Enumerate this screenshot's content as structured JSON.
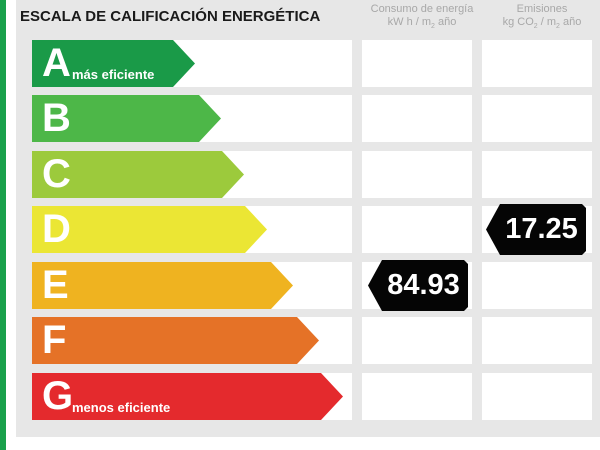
{
  "title": "ESCALA DE CALIFICACIÓN ENERGÉTICA",
  "columns": {
    "energy": {
      "line1": "Consumo de energía",
      "line2a": "kW h / m",
      "sub": "2",
      "line2b": " año"
    },
    "emissions": {
      "line1": "Emisiones",
      "line2a": "kg CO",
      "sub1": "2",
      "line2b": " / m",
      "sub2": "2",
      "line2c": " año"
    }
  },
  "ratings": [
    {
      "letter": "A",
      "label": "más eficiente",
      "color": "#1a9a48"
    },
    {
      "letter": "B",
      "label": "",
      "color": "#4db748"
    },
    {
      "letter": "C",
      "label": "",
      "color": "#9cca3c"
    },
    {
      "letter": "D",
      "label": "",
      "color": "#ebe634"
    },
    {
      "letter": "E",
      "label": "",
      "color": "#efb320"
    },
    {
      "letter": "F",
      "label": "",
      "color": "#e57227"
    },
    {
      "letter": "G",
      "label": "menos eficiente",
      "color": "#e42a2d"
    }
  ],
  "energy_rating": {
    "letter": "E",
    "value": "84.93"
  },
  "emissions_rating": {
    "letter": "D",
    "value": "17.25"
  }
}
